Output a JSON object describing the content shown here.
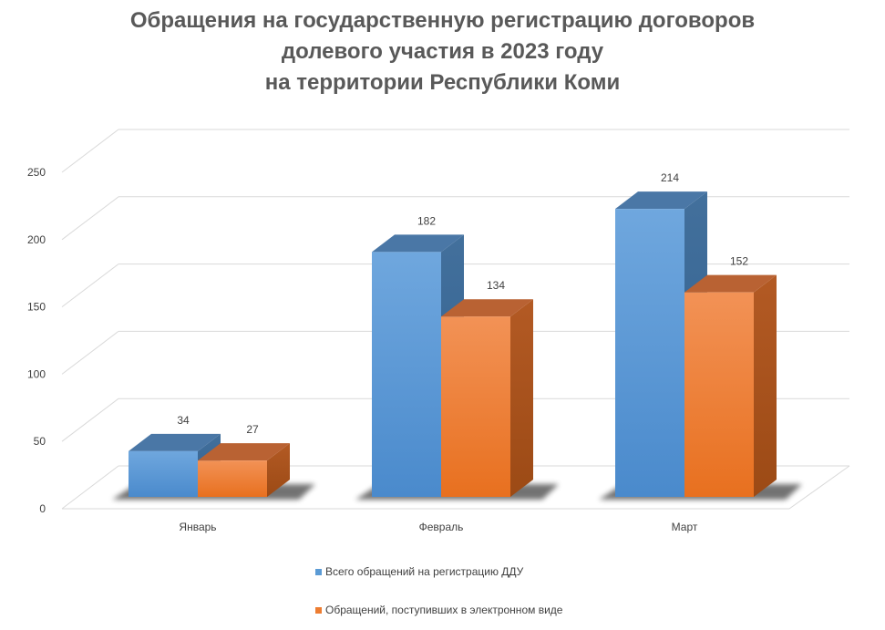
{
  "chart_data": {
    "type": "bar",
    "title_lines": [
      "Обращения на государственную регистрацию договоров",
      "долевого участия в 2023 году",
      "на территории Республики Коми"
    ],
    "categories": [
      "Январь",
      "Февраль",
      "Март"
    ],
    "series": [
      {
        "name": "Всего обращений на регистрацию ДДУ",
        "values": [
          34,
          182,
          214
        ],
        "color": "#5b9bd5"
      },
      {
        "name": "Обращений, поступивших в электронном виде",
        "values": [
          27,
          134,
          152
        ],
        "color": "#ed7d31"
      }
    ],
    "y_ticks": [
      "0",
      "50",
      "100",
      "150",
      "200",
      "250"
    ],
    "ylim": [
      0,
      250
    ],
    "grid": true,
    "legend_position": "bottom",
    "style": "3d-column"
  }
}
